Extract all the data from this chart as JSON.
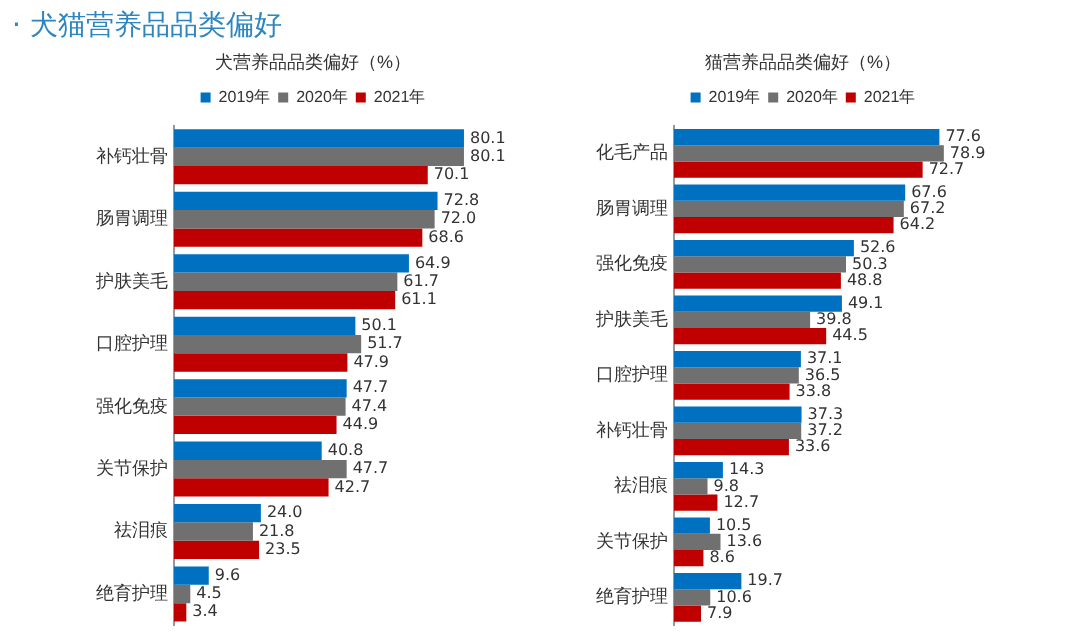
{
  "chart_data": [
    {
      "type": "bar",
      "orientation": "horizontal",
      "title": "犬营养品品类偏好（%）",
      "annotations": [
        "· 犬猫营养品品类偏好"
      ],
      "categories": [
        "补钙壮骨",
        "肠胃调理",
        "护肤美毛",
        "口腔护理",
        "强化免疫",
        "关节保护",
        "祛泪痕",
        "绝育护理"
      ],
      "series": [
        {
          "name": "2019年",
          "color": "#0070c0",
          "values": [
            80.1,
            72.8,
            64.9,
            50.1,
            47.7,
            40.8,
            24.0,
            9.6
          ],
          "value_labels": [
            "80.1",
            "72.8",
            "64.9",
            "50.1",
            "47.7",
            "40.8",
            "24.0",
            "9.6"
          ]
        },
        {
          "name": "2020年",
          "color": "#707070",
          "values": [
            80.1,
            72.0,
            61.7,
            51.7,
            47.4,
            47.7,
            21.8,
            4.5
          ],
          "value_labels": [
            "80.1",
            "72.0",
            "61.7",
            "51.7",
            "47.4",
            "47.7",
            "21.8",
            "4.5"
          ]
        },
        {
          "name": "2021年",
          "color": "#c00000",
          "values": [
            70.1,
            68.6,
            61.1,
            47.9,
            44.9,
            42.7,
            23.5,
            3.4
          ],
          "value_labels": [
            "70.1",
            "68.6",
            "61.1",
            "47.9",
            "44.9",
            "42.7",
            "23.5",
            "3.4"
          ]
        }
      ],
      "legend": "top",
      "tick_labels": "y"
    },
    {
      "type": "bar",
      "orientation": "horizontal",
      "title": "猫营养品品类偏好（%）",
      "categories": [
        "化毛产品",
        "肠胃调理",
        "强化免疫",
        "护肤美毛",
        "口腔护理",
        "补钙壮骨",
        "祛泪痕",
        "关节保护",
        "绝育护理"
      ],
      "series": [
        {
          "name": "2019年",
          "color": "#0070c0",
          "values": [
            77.6,
            67.6,
            52.6,
            49.1,
            37.1,
            37.3,
            14.3,
            10.5,
            19.7
          ]
        },
        {
          "name": "2020年",
          "color": "#707070",
          "values": [
            78.9,
            67.2,
            50.3,
            39.8,
            36.5,
            37.2,
            9.8,
            13.6,
            10.6
          ]
        },
        {
          "name": "2021年",
          "color": "#c00000",
          "values": [
            72.7,
            64.2,
            48.8,
            44.5,
            33.8,
            33.6,
            12.7,
            8.6,
            7.9
          ]
        }
      ],
      "data_labels": true,
      "legend": "top",
      "tick_labels": "y"
    }
  ]
}
